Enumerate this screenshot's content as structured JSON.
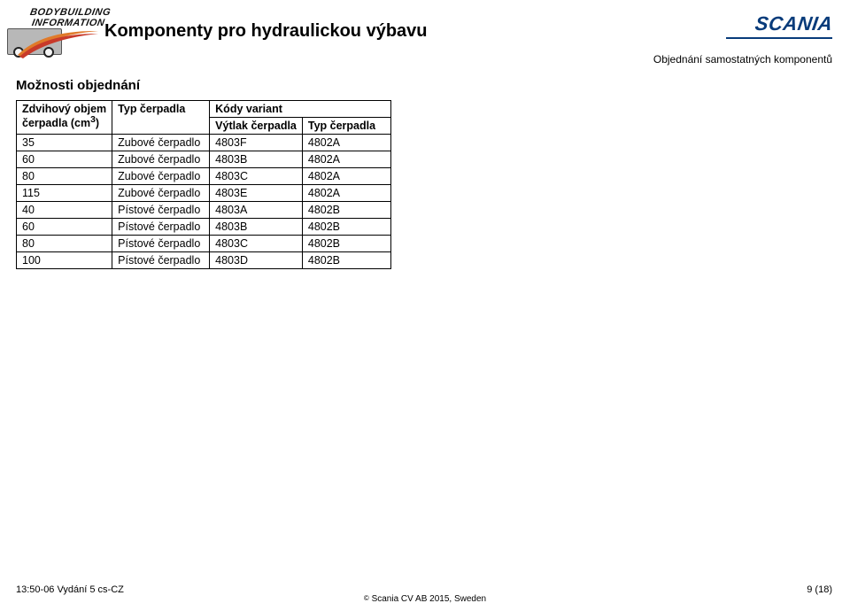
{
  "header": {
    "logo_left_line1": "BODYBUILDING",
    "logo_left_line2": "INFORMATION",
    "title": "Komponenty pro hydraulickou výbavu",
    "scania_text": "SCANIA",
    "subtitle_right": "Objednání samostatných komponentů"
  },
  "section_heading": "Možnosti objednání",
  "table": {
    "head": {
      "c1_line1": "Zdvihový objem",
      "c1_line2": "čerpadla (cm",
      "c1_sup": "3",
      "c1_line2_close": ")",
      "c2": "Typ čerpadla",
      "c3_top": "Kódy variant",
      "c3a": "Výtlak čerpadla",
      "c3b": "Typ čerpadla"
    },
    "rows": [
      {
        "vol": "35",
        "type": "Zubové čerpadlo",
        "code1": "4803F",
        "code2": "4802A"
      },
      {
        "vol": "60",
        "type": "Zubové čerpadlo",
        "code1": "4803B",
        "code2": "4802A"
      },
      {
        "vol": "80",
        "type": "Zubové čerpadlo",
        "code1": "4803C",
        "code2": "4802A"
      },
      {
        "vol": "115",
        "type": "Zubové čerpadlo",
        "code1": "4803E",
        "code2": "4802A"
      },
      {
        "vol": "40",
        "type": "Pístové čerpadlo",
        "code1": "4803A",
        "code2": "4802B"
      },
      {
        "vol": "60",
        "type": "Pístové čerpadlo",
        "code1": "4803B",
        "code2": "4802B"
      },
      {
        "vol": "80",
        "type": "Pístové čerpadlo",
        "code1": "4803C",
        "code2": "4802B"
      },
      {
        "vol": "100",
        "type": "Pístové čerpadlo",
        "code1": "4803D",
        "code2": "4802B"
      }
    ]
  },
  "footer": {
    "left": "13:50-06 Vydání 5 cs-CZ",
    "right": "9 (18)",
    "center_prefix": "©",
    "center_text": " Scania CV AB 2015, Sweden"
  },
  "colors": {
    "scania_blue": "#083b7a",
    "swoosh_orange": "#e07a2a",
    "swoosh_red": "#c83a2a"
  }
}
